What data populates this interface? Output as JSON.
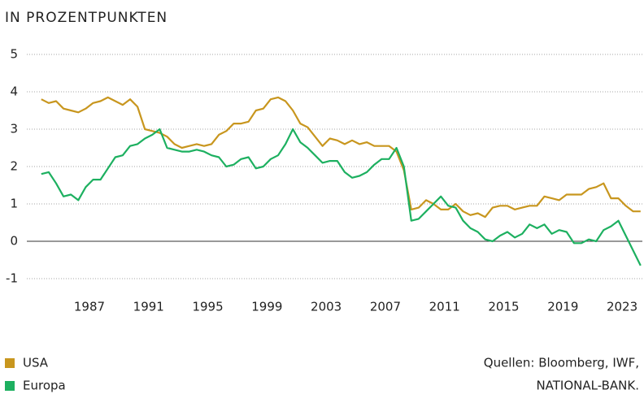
{
  "chart_data": {
    "type": "line",
    "title": "IN PROZENTPUNKTEN",
    "source": [
      "Quellen: Bloomberg, IWF,",
      "NATIONAL-BANK."
    ],
    "x": [
      1983.75,
      1984.25,
      1984.75,
      1985.25,
      1985.75,
      1986.25,
      1986.75,
      1987.25,
      1987.75,
      1988.25,
      1988.75,
      1989.25,
      1989.75,
      1990.25,
      1990.75,
      1991.25,
      1991.75,
      1992.25,
      1992.75,
      1993.25,
      1993.75,
      1994.25,
      1994.75,
      1995.25,
      1995.75,
      1996.25,
      1996.75,
      1997.25,
      1997.75,
      1998.25,
      1998.75,
      1999.25,
      1999.75,
      2000.25,
      2000.75,
      2001.25,
      2001.75,
      2002.25,
      2002.75,
      2003.25,
      2003.75,
      2004.25,
      2004.75,
      2005.25,
      2005.75,
      2006.25,
      2006.75,
      2007.25,
      2007.75,
      2008.25,
      2008.75,
      2009.25,
      2009.75,
      2010.25,
      2010.75,
      2011.25,
      2011.75,
      2012.25,
      2012.75,
      2013.25,
      2013.75,
      2014.25,
      2014.75,
      2015.25,
      2015.75,
      2016.25,
      2016.75,
      2017.25,
      2017.75,
      2018.25,
      2018.75,
      2019.25,
      2019.75,
      2020.25,
      2020.75,
      2021.25,
      2021.75,
      2022.25,
      2022.75,
      2023.25,
      2023.75,
      2024.25
    ],
    "series": [
      {
        "name": "USA",
        "color": "#c8961e",
        "values": [
          3.8,
          3.7,
          3.75,
          3.55,
          3.5,
          3.45,
          3.55,
          3.7,
          3.75,
          3.85,
          3.75,
          3.65,
          3.8,
          3.6,
          3.0,
          2.95,
          2.9,
          2.8,
          2.6,
          2.5,
          2.55,
          2.6,
          2.55,
          2.6,
          2.85,
          2.95,
          3.15,
          3.15,
          3.2,
          3.5,
          3.55,
          3.8,
          3.85,
          3.75,
          3.5,
          3.15,
          3.05,
          2.8,
          2.55,
          2.75,
          2.7,
          2.6,
          2.7,
          2.6,
          2.65,
          2.55,
          2.55,
          2.55,
          2.4,
          1.9,
          0.85,
          0.9,
          1.1,
          1.0,
          0.85,
          0.85,
          1.0,
          0.8,
          0.7,
          0.75,
          0.65,
          0.9,
          0.95,
          0.95,
          0.85,
          0.9,
          0.95,
          0.95,
          1.2,
          1.15,
          1.1,
          1.25,
          1.25,
          1.25,
          1.4,
          1.45,
          1.55,
          1.15,
          1.15,
          0.95,
          0.8,
          0.8
        ]
      },
      {
        "name": "Europa",
        "color": "#1db060",
        "values": [
          1.8,
          1.85,
          1.55,
          1.2,
          1.25,
          1.1,
          1.45,
          1.65,
          1.65,
          1.95,
          2.25,
          2.3,
          2.55,
          2.6,
          2.75,
          2.85,
          3.0,
          2.5,
          2.45,
          2.4,
          2.4,
          2.45,
          2.4,
          2.3,
          2.25,
          2.0,
          2.05,
          2.2,
          2.25,
          1.95,
          2.0,
          2.2,
          2.3,
          2.6,
          3.0,
          2.65,
          2.5,
          2.3,
          2.1,
          2.15,
          2.15,
          1.85,
          1.7,
          1.75,
          1.85,
          2.05,
          2.2,
          2.2,
          2.5,
          2.0,
          0.55,
          0.6,
          0.8,
          1.0,
          1.2,
          0.95,
          0.9,
          0.55,
          0.35,
          0.25,
          0.05,
          0.0,
          0.15,
          0.25,
          0.1,
          0.2,
          0.45,
          0.35,
          0.45,
          0.2,
          0.3,
          0.25,
          -0.05,
          -0.05,
          0.05,
          0.0,
          0.3,
          0.4,
          0.55,
          0.15,
          -0.25,
          -0.65
        ]
      }
    ],
    "xlim": [
      1982.77,
      2024.37
    ],
    "xticks": [
      1987,
      1991,
      1995,
      1999,
      2003,
      2007,
      2011,
      2015,
      2019,
      2023
    ],
    "ylim": [
      -1,
      5
    ],
    "yticks": [
      -1,
      0,
      1,
      2,
      3,
      4,
      5
    ],
    "grid": true
  }
}
